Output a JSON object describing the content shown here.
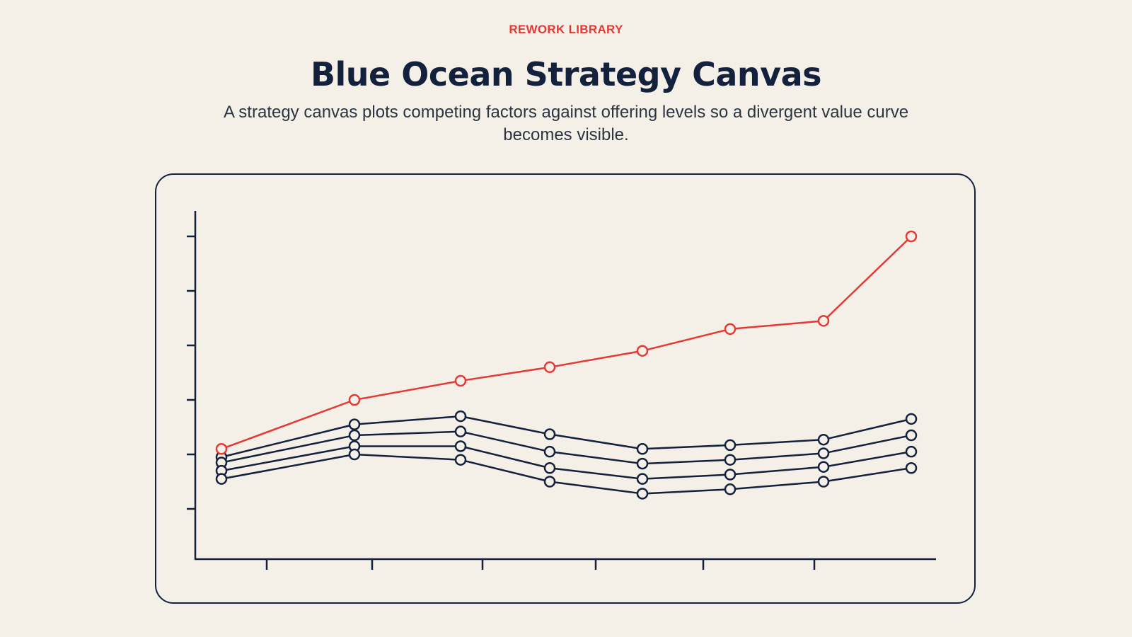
{
  "header": {
    "eyebrow": "REWORK LIBRARY",
    "title": "Blue Ocean Strategy Canvas",
    "subtitle": "A strategy canvas plots competing factors against offering levels so a divergent value curve becomes visible."
  },
  "colors": {
    "background": "#f4f0e8",
    "accent": "#e53935",
    "navy": "#14213d"
  },
  "chart_data": {
    "type": "line",
    "title": "",
    "xlabel": "",
    "ylabel": "",
    "x": [
      1,
      2,
      3,
      4,
      5,
      6,
      7,
      8
    ],
    "ylim": [
      0,
      6.3
    ],
    "y_ticks": 6,
    "x_ticks": 7,
    "grid": false,
    "series": [
      {
        "highlight": true,
        "values": [
          2.1,
          3.0,
          3.35,
          3.6,
          3.9,
          4.3,
          4.45,
          6.0
        ]
      },
      {
        "highlight": false,
        "values": [
          1.95,
          2.55,
          2.7,
          2.37,
          2.1,
          2.17,
          2.27,
          2.65
        ]
      },
      {
        "highlight": false,
        "values": [
          1.85,
          2.35,
          2.42,
          2.05,
          1.83,
          1.9,
          2.02,
          2.35
        ]
      },
      {
        "highlight": false,
        "values": [
          1.7,
          2.15,
          2.15,
          1.75,
          1.55,
          1.63,
          1.77,
          2.05
        ]
      },
      {
        "highlight": false,
        "values": [
          1.55,
          2.0,
          1.9,
          1.5,
          1.28,
          1.36,
          1.5,
          1.75
        ]
      }
    ]
  }
}
